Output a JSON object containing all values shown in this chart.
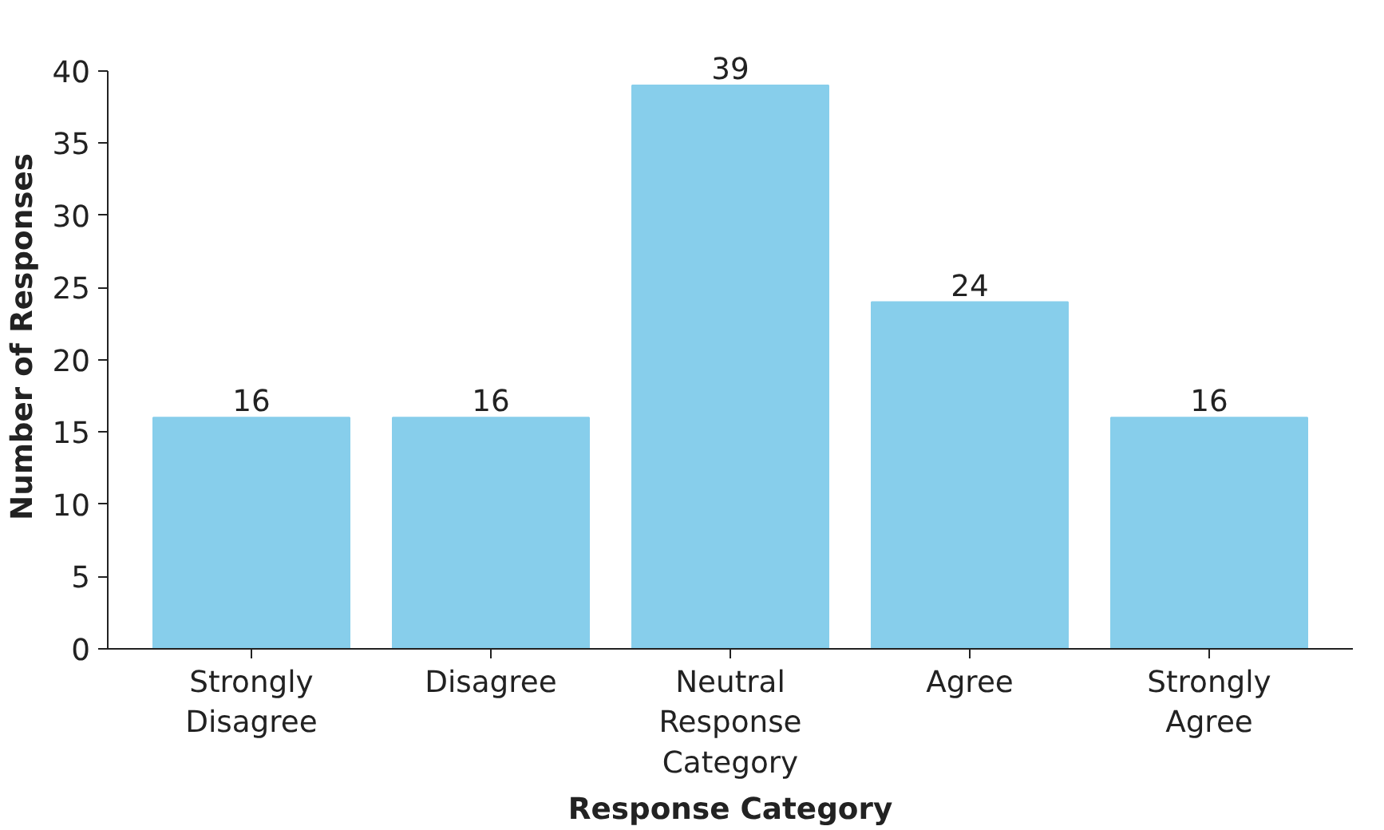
{
  "chart_data": {
    "type": "bar",
    "xlabel": "Response Category",
    "ylabel": "Number of Responses",
    "categories": [
      "Strongly Disagree",
      "Disagree",
      "Neutral Response Category",
      "Agree",
      "Strongly Agree"
    ],
    "values": [
      16,
      16,
      39,
      24,
      16
    ],
    "color": "#87ceeb",
    "ylim": [
      0,
      40
    ],
    "yticks": [
      0,
      5,
      10,
      15,
      20,
      25,
      30,
      35,
      40
    ],
    "grid": false,
    "data_labels": true
  }
}
